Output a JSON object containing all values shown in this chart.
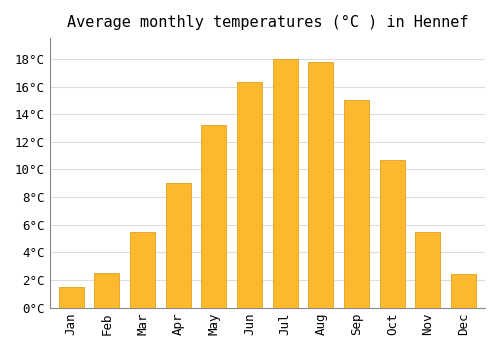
{
  "title": "Average monthly temperatures (°C ) in Hennef",
  "months": [
    "Jan",
    "Feb",
    "Mar",
    "Apr",
    "May",
    "Jun",
    "Jul",
    "Aug",
    "Sep",
    "Oct",
    "Nov",
    "Dec"
  ],
  "temperatures": [
    1.5,
    2.5,
    5.5,
    9.0,
    13.2,
    16.3,
    18.0,
    17.8,
    15.0,
    10.7,
    5.5,
    2.4
  ],
  "bar_color": "#FDB92E",
  "bar_edge_color": "#E0A020",
  "background_color": "#FFFFFF",
  "grid_color": "#DDDDDD",
  "ylim": [
    0,
    19.5
  ],
  "yticks": [
    0,
    2,
    4,
    6,
    8,
    10,
    12,
    14,
    16,
    18
  ],
  "title_fontsize": 11,
  "tick_fontsize": 9,
  "font_family": "monospace"
}
